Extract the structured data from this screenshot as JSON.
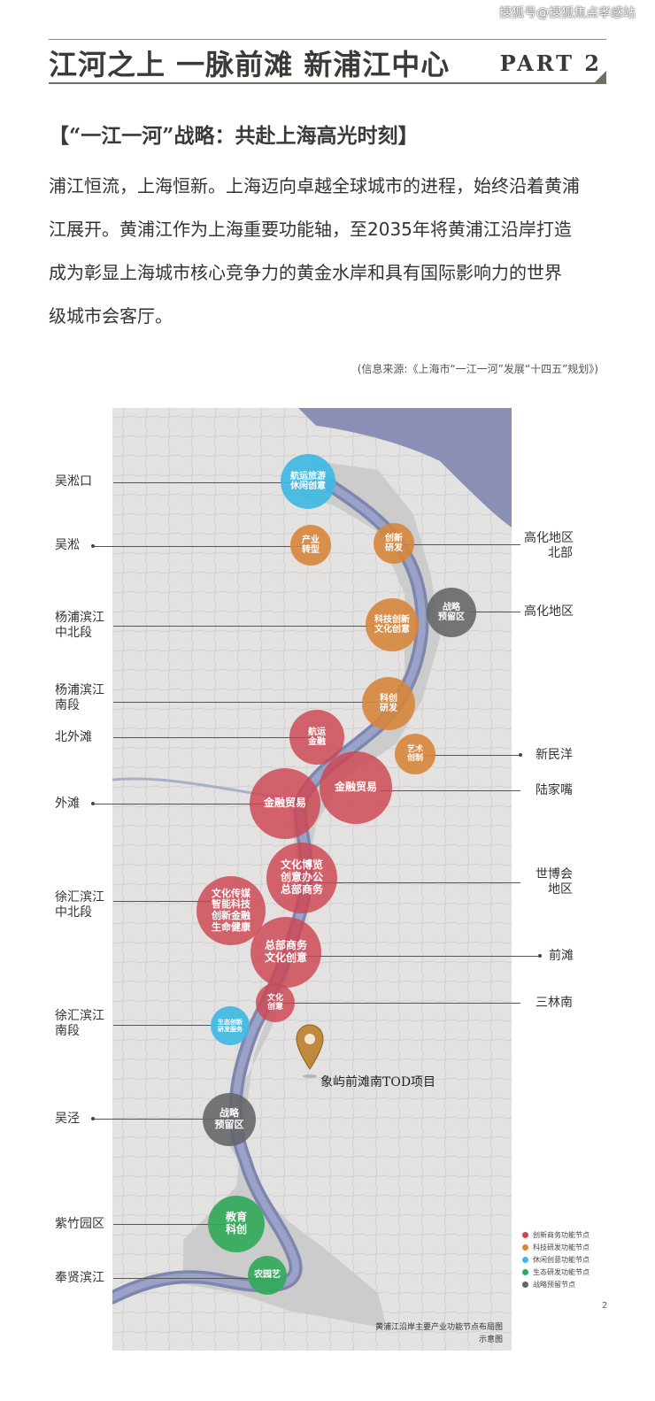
{
  "watermark": "搜狐号@搜狐焦点孝感站",
  "header": {
    "title": "江河之上 一脉前滩 新浦江中心",
    "part": "PART 2"
  },
  "section_title": "【“一江一河”战略：共赴上海高光时刻】",
  "paragraph_lines": [
    "浦江恒流，上海恒新。上海迈向卓越全球城市的进程，始终沿着黄浦",
    "江展开。黄浦江作为上海重要功能轴，至2035年将黄浦江沿岸打造",
    "成为彰显上海城市核心竞争力的黄金水岸和具有国际影响力的世界",
    "级城市会客厅。"
  ],
  "source_note": "(信息来源:《上海市“一江一河”发展“十四五”规划》)",
  "map": {
    "left_labels": [
      {
        "line1": "吴淞口",
        "line2": ""
      },
      {
        "line1": "吴淞",
        "line2": ""
      },
      {
        "line1": "杨浦滨江",
        "line2": "中北段"
      },
      {
        "line1": "杨浦滨江",
        "line2": "南段"
      },
      {
        "line1": "北外滩",
        "line2": ""
      },
      {
        "line1": "外滩",
        "line2": ""
      },
      {
        "line1": "徐汇滨江",
        "line2": "中北段"
      },
      {
        "line1": "徐汇滨江",
        "line2": "南段"
      },
      {
        "line1": "吴泾",
        "line2": ""
      },
      {
        "line1": "紫竹园区",
        "line2": ""
      },
      {
        "line1": "奉贤滨江",
        "line2": ""
      }
    ],
    "right_labels": [
      {
        "line1": "高化地区",
        "line2": "北部"
      },
      {
        "line1": "高化地区",
        "line2": ""
      },
      {
        "line1": "新民洋",
        "line2": ""
      },
      {
        "line1": "陆家嘴",
        "line2": ""
      },
      {
        "line1": "世博会",
        "line2": "地区"
      },
      {
        "line1": "前滩",
        "line2": ""
      },
      {
        "line1": "三林南",
        "line2": ""
      }
    ],
    "nodes": [
      {
        "lines": [
          "航运旅游",
          "休闲创意"
        ],
        "color": "cyan"
      },
      {
        "lines": [
          "产业",
          "转型"
        ],
        "color": "orange"
      },
      {
        "lines": [
          "创新",
          "研发"
        ],
        "color": "orange"
      },
      {
        "lines": [
          "战略",
          "预留区"
        ],
        "color": "grey"
      },
      {
        "lines": [
          "科技创新",
          "文化创意"
        ],
        "color": "orange"
      },
      {
        "lines": [
          "科创",
          "研发"
        ],
        "color": "orange"
      },
      {
        "lines": [
          "航运",
          "金融"
        ],
        "color": "red"
      },
      {
        "lines": [
          "艺术",
          "创制"
        ],
        "color": "orange"
      },
      {
        "lines": [
          "金融贸易"
        ],
        "color": "red"
      },
      {
        "lines": [
          "金融贸易"
        ],
        "color": "red"
      },
      {
        "lines": [
          "文化博览",
          "创意办公",
          "总部商务"
        ],
        "color": "red"
      },
      {
        "lines": [
          "文化传媒",
          "智能科技",
          "创新金融",
          "生命健康"
        ],
        "color": "red"
      },
      {
        "lines": [
          "总部商务",
          "文化创意"
        ],
        "color": "red"
      },
      {
        "lines": [
          "文化",
          "创意"
        ],
        "color": "red"
      },
      {
        "lines": [
          "生态创新",
          "研发服务"
        ],
        "color": "cyan"
      },
      {
        "lines": [
          "战略",
          "预留区"
        ],
        "color": "grey"
      },
      {
        "lines": [
          "教育",
          "科创"
        ],
        "color": "green"
      },
      {
        "lines": [
          "农园艺"
        ],
        "color": "green"
      }
    ],
    "project_label": "象屿前滩南TOD项目",
    "legend": [
      {
        "label": "创新商务功能节点",
        "color": "#cd4652"
      },
      {
        "label": "科技研发功能节点",
        "color": "#d6863c"
      },
      {
        "label": "休闲创意功能节点",
        "color": "#40b8e2"
      },
      {
        "label": "生态研发功能节点",
        "color": "#32aa5a"
      },
      {
        "label": "战略预留节点",
        "color": "#646468"
      }
    ],
    "caption_line1": "黄浦江沿岸主要产业功能节点布局图",
    "caption_line2": "示意图",
    "page_mark": "2"
  }
}
